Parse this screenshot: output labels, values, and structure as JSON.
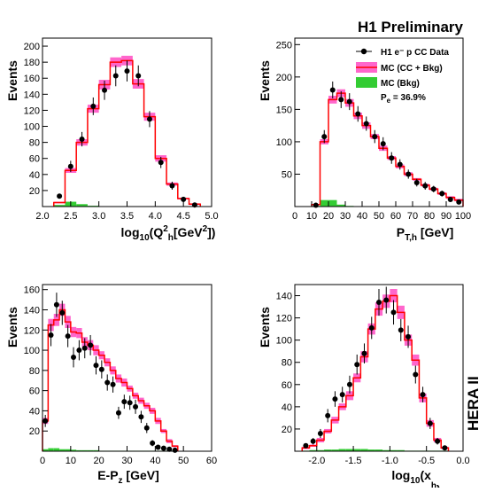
{
  "page": {
    "header": "H1 Preliminary",
    "side_label": "HERA II"
  },
  "legend": {
    "data_label": "H1 e⁻ p CC Data",
    "mc_label": "MC (CC + Bkg)",
    "bkg_label": "MC (Bkg)",
    "pe_label": "P",
    "pe_sub": "e",
    "pe_value": " = 36.9%"
  },
  "colors": {
    "data": "#000000",
    "mc_line": "#ff0000",
    "mc_band": "#ff66cc",
    "bkg": "#33cc33"
  },
  "chart_data": [
    {
      "type": "histogram",
      "name": "q2",
      "ylabel": "Events",
      "xlabel_main": "log",
      "xlabel_sub1": "10",
      "xlabel_paren": "(Q",
      "xlabel_sup": "2",
      "xlabel_sub2": "h",
      "xlabel_bracket": "[GeV",
      "xlabel_sup2": "2",
      "xlabel_end": "])",
      "xlim": [
        2.0,
        5.0
      ],
      "ylim": [
        0,
        210
      ],
      "xticks": [
        "2.0",
        "2.5",
        "3.0",
        "3.5",
        "4.0",
        "4.5",
        "5.0"
      ],
      "xtick_values": [
        2.0,
        2.5,
        3.0,
        3.5,
        4.0,
        4.5,
        5.0
      ],
      "yticks": [
        "20",
        "40",
        "60",
        "80",
        "100",
        "120",
        "140",
        "160",
        "180",
        "200"
      ],
      "ytick_values": [
        20,
        40,
        60,
        80,
        100,
        120,
        140,
        160,
        180,
        200
      ],
      "bin_edges": [
        2.2,
        2.4,
        2.6,
        2.8,
        3.0,
        3.2,
        3.4,
        3.6,
        3.8,
        4.0,
        4.2,
        4.4,
        4.6,
        4.8
      ],
      "mc_values": [
        5,
        45,
        80,
        122,
        152,
        180,
        182,
        153,
        112,
        60,
        28,
        10,
        3
      ],
      "mc_band": [
        1,
        3,
        4,
        5,
        6,
        6,
        6,
        6,
        5,
        4,
        2,
        1,
        1
      ],
      "bkg_values": [
        2,
        6,
        3,
        1,
        0.5,
        0,
        0,
        0,
        0,
        0,
        0,
        0,
        0
      ],
      "data": [
        {
          "x": 2.3,
          "y": 13,
          "err": 3
        },
        {
          "x": 2.5,
          "y": 50,
          "err": 7
        },
        {
          "x": 2.7,
          "y": 84,
          "err": 9
        },
        {
          "x": 2.9,
          "y": 125,
          "err": 11
        },
        {
          "x": 3.1,
          "y": 145,
          "err": 12
        },
        {
          "x": 3.3,
          "y": 163,
          "err": 13
        },
        {
          "x": 3.5,
          "y": 169,
          "err": 13
        },
        {
          "x": 3.7,
          "y": 163,
          "err": 13
        },
        {
          "x": 3.9,
          "y": 109,
          "err": 10
        },
        {
          "x": 4.1,
          "y": 55,
          "err": 7
        },
        {
          "x": 4.3,
          "y": 26,
          "err": 5
        },
        {
          "x": 4.5,
          "y": 9,
          "err": 3
        },
        {
          "x": 4.7,
          "y": 2,
          "err": 1.5
        }
      ]
    },
    {
      "type": "histogram",
      "name": "pt",
      "ylabel": "Events",
      "xlabel_main": "P",
      "xlabel_sub1": "T,h",
      "xlabel_paren": "",
      "xlabel_sup": "",
      "xlabel_sub2": "",
      "xlabel_bracket": " [GeV]",
      "xlabel_sup2": "",
      "xlabel_end": "",
      "xlim": [
        0,
        100
      ],
      "ylim": [
        0,
        260
      ],
      "xticks": [
        "0",
        "10",
        "20",
        "30",
        "40",
        "50",
        "60",
        "70",
        "80",
        "90",
        "100"
      ],
      "xtick_values": [
        0,
        10,
        20,
        30,
        40,
        50,
        60,
        70,
        80,
        90,
        100
      ],
      "yticks": [
        "50",
        "100",
        "150",
        "200",
        "250"
      ],
      "ytick_values": [
        50,
        100,
        150,
        200,
        250
      ],
      "bin_edges": [
        10,
        15,
        20,
        25,
        30,
        35,
        40,
        45,
        50,
        55,
        60,
        65,
        70,
        75,
        80,
        85,
        90,
        95,
        100
      ],
      "mc_values": [
        3,
        100,
        165,
        175,
        160,
        140,
        125,
        108,
        90,
        75,
        62,
        50,
        42,
        33,
        27,
        20,
        14,
        10
      ],
      "mc_band": [
        1,
        4,
        6,
        6,
        6,
        5,
        5,
        4,
        4,
        3,
        3,
        3,
        2,
        2,
        2,
        2,
        2,
        2
      ],
      "bkg_values": [
        1,
        10,
        10,
        3,
        1,
        0,
        0,
        0,
        0,
        0,
        0,
        0,
        0,
        0,
        0,
        0,
        0,
        0
      ],
      "data": [
        {
          "x": 12.5,
          "y": 2,
          "err": 1.5
        },
        {
          "x": 17.5,
          "y": 108,
          "err": 10
        },
        {
          "x": 22.5,
          "y": 180,
          "err": 13
        },
        {
          "x": 27.5,
          "y": 165,
          "err": 13
        },
        {
          "x": 32.5,
          "y": 162,
          "err": 13
        },
        {
          "x": 37.5,
          "y": 143,
          "err": 12
        },
        {
          "x": 42.5,
          "y": 128,
          "err": 11
        },
        {
          "x": 47.5,
          "y": 108,
          "err": 10
        },
        {
          "x": 52.5,
          "y": 97,
          "err": 10
        },
        {
          "x": 57.5,
          "y": 75,
          "err": 9
        },
        {
          "x": 62.5,
          "y": 65,
          "err": 8
        },
        {
          "x": 67.5,
          "y": 50,
          "err": 7
        },
        {
          "x": 72.5,
          "y": 37,
          "err": 6
        },
        {
          "x": 77.5,
          "y": 32,
          "err": 6
        },
        {
          "x": 82.5,
          "y": 27,
          "err": 5
        },
        {
          "x": 87.5,
          "y": 20,
          "err": 4.5
        },
        {
          "x": 92.5,
          "y": 11,
          "err": 3.5
        },
        {
          "x": 97.5,
          "y": 7,
          "err": 3
        }
      ]
    },
    {
      "type": "histogram",
      "name": "empz",
      "ylabel": "Events",
      "xlabel_main": "E-P",
      "xlabel_sub1": "z",
      "xlabel_paren": "",
      "xlabel_sup": "",
      "xlabel_sub2": "",
      "xlabel_bracket": " [GeV]",
      "xlabel_sup2": "",
      "xlabel_end": "",
      "xlim": [
        0,
        60
      ],
      "ylim": [
        0,
        165
      ],
      "xticks": [
        "0",
        "10",
        "20",
        "30",
        "40",
        "50",
        "60"
      ],
      "xtick_values": [
        0,
        10,
        20,
        30,
        40,
        50,
        60
      ],
      "yticks": [
        "20",
        "40",
        "60",
        "80",
        "100",
        "120",
        "140",
        "160"
      ],
      "ytick_values": [
        20,
        40,
        60,
        80,
        100,
        120,
        140,
        160
      ],
      "bin_edges": [
        0,
        2,
        4,
        6,
        8,
        10,
        12,
        14,
        16,
        18,
        20,
        22,
        24,
        26,
        28,
        30,
        32,
        34,
        36,
        38,
        40,
        42,
        44,
        46,
        48
      ],
      "mc_values": [
        30,
        125,
        130,
        140,
        128,
        118,
        117,
        108,
        105,
        100,
        95,
        88,
        80,
        72,
        68,
        62,
        55,
        50,
        45,
        40,
        30,
        20,
        10,
        5
      ],
      "mc_band": [
        3,
        6,
        6,
        6,
        6,
        5,
        5,
        5,
        5,
        5,
        4,
        4,
        4,
        4,
        4,
        3,
        3,
        3,
        3,
        3,
        3,
        2,
        2,
        1
      ],
      "bkg_values": [
        2,
        3,
        3,
        2,
        2,
        1.5,
        1,
        1,
        1,
        1,
        0.5,
        0.5,
        0.5,
        0.5,
        0.5,
        0.5,
        0.5,
        0.5,
        0.5,
        0.5,
        0.5,
        0.5,
        0.5,
        0.5
      ],
      "data": [
        {
          "x": 1,
          "y": 30,
          "err": 6
        },
        {
          "x": 3,
          "y": 115,
          "err": 11
        },
        {
          "x": 5,
          "y": 145,
          "err": 12
        },
        {
          "x": 7,
          "y": 137,
          "err": 12
        },
        {
          "x": 9,
          "y": 114,
          "err": 11
        },
        {
          "x": 11,
          "y": 93,
          "err": 10
        },
        {
          "x": 13,
          "y": 100,
          "err": 10
        },
        {
          "x": 15,
          "y": 102,
          "err": 10
        },
        {
          "x": 17,
          "y": 105,
          "err": 10
        },
        {
          "x": 19,
          "y": 85,
          "err": 9
        },
        {
          "x": 21,
          "y": 81,
          "err": 9
        },
        {
          "x": 23,
          "y": 68,
          "err": 8
        },
        {
          "x": 25,
          "y": 66,
          "err": 8
        },
        {
          "x": 27,
          "y": 38,
          "err": 6
        },
        {
          "x": 29,
          "y": 49,
          "err": 7
        },
        {
          "x": 31,
          "y": 48,
          "err": 7
        },
        {
          "x": 33,
          "y": 44,
          "err": 7
        },
        {
          "x": 35,
          "y": 34,
          "err": 6
        },
        {
          "x": 37,
          "y": 23,
          "err": 5
        },
        {
          "x": 39,
          "y": 8,
          "err": 3
        },
        {
          "x": 41,
          "y": 4,
          "err": 2
        },
        {
          "x": 43,
          "y": 3,
          "err": 2
        },
        {
          "x": 45,
          "y": 2,
          "err": 1.5
        },
        {
          "x": 47,
          "y": 1,
          "err": 1
        }
      ]
    },
    {
      "type": "histogram",
      "name": "xh",
      "ylabel": "Events",
      "xlabel_main": "log",
      "xlabel_sub1": "10",
      "xlabel_paren": "(x",
      "xlabel_sup": "",
      "xlabel_sub2": "h",
      "xlabel_bracket": "",
      "xlabel_sup2": "",
      "xlabel_end": ")",
      "xlim": [
        -2.3,
        0.0
      ],
      "ylim": [
        0,
        150
      ],
      "xticks": [
        "-2.0",
        "-1.5",
        "-1.0",
        "-0.5",
        "0.0"
      ],
      "xtick_values": [
        -2.0,
        -1.5,
        -1.0,
        -0.5,
        0.0
      ],
      "yticks": [
        "20",
        "40",
        "60",
        "80",
        "100",
        "120",
        "140"
      ],
      "ytick_values": [
        20,
        40,
        60,
        80,
        100,
        120,
        140
      ],
      "bin_edges": [
        -2.2,
        -2.1,
        -2.0,
        -1.9,
        -1.8,
        -1.7,
        -1.6,
        -1.5,
        -1.4,
        -1.3,
        -1.2,
        -1.1,
        -1.0,
        -0.9,
        -0.8,
        -0.7,
        -0.6,
        -0.5,
        -0.4,
        -0.3,
        -0.2
      ],
      "mc_values": [
        3,
        5,
        10,
        18,
        28,
        40,
        50,
        66,
        85,
        110,
        128,
        135,
        140,
        125,
        100,
        82,
        48,
        25,
        10,
        3
      ],
      "mc_band": [
        1,
        1,
        2,
        2,
        3,
        3,
        4,
        4,
        5,
        5,
        6,
        6,
        6,
        6,
        5,
        5,
        4,
        3,
        2,
        1
      ],
      "bkg_values": [
        0.5,
        1,
        1,
        1.5,
        1.5,
        2,
        2,
        2,
        2,
        1.5,
        1.5,
        1,
        1,
        1,
        0.5,
        0.5,
        0.5,
        0.5,
        0.5,
        0.5
      ],
      "data": [
        {
          "x": -2.15,
          "y": 5,
          "err": 2
        },
        {
          "x": -2.05,
          "y": 9,
          "err": 3
        },
        {
          "x": -1.95,
          "y": 16,
          "err": 4
        },
        {
          "x": -1.85,
          "y": 32,
          "err": 6
        },
        {
          "x": -1.75,
          "y": 47,
          "err": 7
        },
        {
          "x": -1.65,
          "y": 51,
          "err": 7
        },
        {
          "x": -1.55,
          "y": 60,
          "err": 8
        },
        {
          "x": -1.45,
          "y": 78,
          "err": 9
        },
        {
          "x": -1.35,
          "y": 88,
          "err": 9
        },
        {
          "x": -1.25,
          "y": 111,
          "err": 10
        },
        {
          "x": -1.15,
          "y": 134,
          "err": 12
        },
        {
          "x": -1.05,
          "y": 136,
          "err": 12
        },
        {
          "x": -0.95,
          "y": 125,
          "err": 11
        },
        {
          "x": -0.85,
          "y": 109,
          "err": 10
        },
        {
          "x": -0.75,
          "y": 103,
          "err": 10
        },
        {
          "x": -0.65,
          "y": 69,
          "err": 8
        },
        {
          "x": -0.55,
          "y": 51,
          "err": 7
        },
        {
          "x": -0.45,
          "y": 25,
          "err": 5
        },
        {
          "x": -0.35,
          "y": 9,
          "err": 3
        },
        {
          "x": -0.25,
          "y": 3,
          "err": 2
        }
      ]
    }
  ]
}
